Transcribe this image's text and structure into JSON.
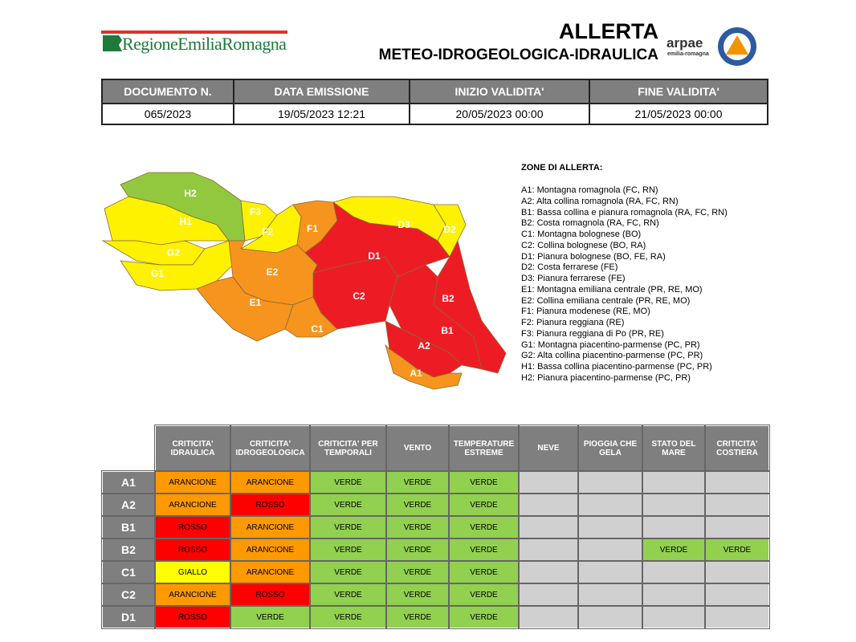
{
  "header": {
    "logo_text": "RegioneEmiliaRomagna",
    "title": "ALLERTA",
    "subtitle": "METEO-IDROGEOLOGICA-IDRAULICA",
    "arpae": "arpae",
    "arpae_sub": "emilia-romagna"
  },
  "doc_table": {
    "headers": [
      "DOCUMENTO N.",
      "DATA EMISSIONE",
      "INIZIO VALIDITA'",
      "FINE VALIDITA'"
    ],
    "values": [
      "065/2023",
      "19/05/2023 12:21",
      "20/05/2023 00:00",
      "21/05/2023 00:00"
    ]
  },
  "map": {
    "labels": [
      "H2",
      "H1",
      "G2",
      "G1",
      "F3",
      "F2",
      "F1",
      "E2",
      "E1",
      "C1",
      "C2",
      "D1",
      "D3",
      "D2",
      "B2",
      "B1",
      "A2",
      "A1"
    ]
  },
  "zones": {
    "title": "ZONE DI ALLERTA:",
    "items": [
      "A1: Montagna romagnola (FC, RN)",
      "A2: Alta collina romagnola (RA, FC, RN)",
      "B1: Bassa collina e pianura romagnola (RA, FC, RN)",
      "B2: Costa romagnola (RA, FC, RN)",
      "C1: Montagna bolognese (BO)",
      "C2: Collina bolognese (BO, RA)",
      "D1: Pianura bolognese (BO, FE, RA)",
      "D2: Costa ferrarese (FE)",
      "D3: Pianura ferrarese (FE)",
      "E1: Montagna emiliana centrale (PR, RE, MO)",
      "E2: Collina emiliana centrale (PR, RE, MO)",
      "F1: Pianura modenese (RE, MO)",
      "F2: Pianura reggiana (RE)",
      "F3: Pianura reggiana di Po (PR, RE)",
      "G1: Montagna piacentino-parmense (PC, PR)",
      "G2: Alta collina piacentino-parmense (PC, PR)",
      "H1: Bassa collina piacentino-parmense (PC, PR)",
      "H2: Pianura piacentino-parmense (PC, PR)"
    ]
  },
  "alert_table": {
    "headers": [
      "CRITICITA' IDRAULICA",
      "CRITICITA' IDROGEOLOGICA",
      "CRITICITA' PER TEMPORALI",
      "VENTO",
      "TEMPERATURE ESTREME",
      "NEVE",
      "PIOGGIA CHE GELA",
      "STATO DEL MARE",
      "CRITICITA' COSTIERA"
    ],
    "rows": [
      {
        "zone": "A1",
        "cells": [
          "ARANCIONE",
          "ARANCIONE",
          "VERDE",
          "VERDE",
          "VERDE",
          null,
          null,
          null,
          null
        ]
      },
      {
        "zone": "A2",
        "cells": [
          "ARANCIONE",
          "ROSSO",
          "VERDE",
          "VERDE",
          "VERDE",
          null,
          null,
          null,
          null
        ]
      },
      {
        "zone": "B1",
        "cells": [
          "ROSSO",
          "ARANCIONE",
          "VERDE",
          "VERDE",
          "VERDE",
          null,
          null,
          null,
          null
        ]
      },
      {
        "zone": "B2",
        "cells": [
          "ROSSO",
          "ARANCIONE",
          "VERDE",
          "VERDE",
          "VERDE",
          null,
          null,
          "VERDE",
          "VERDE"
        ]
      },
      {
        "zone": "C1",
        "cells": [
          "GIALLO",
          "ARANCIONE",
          "VERDE",
          "VERDE",
          "VERDE",
          null,
          null,
          null,
          null
        ]
      },
      {
        "zone": "C2",
        "cells": [
          "ARANCIONE",
          "ROSSO",
          "VERDE",
          "VERDE",
          "VERDE",
          null,
          null,
          null,
          null
        ]
      },
      {
        "zone": "D1",
        "cells": [
          "ROSSO",
          "VERDE",
          "VERDE",
          "VERDE",
          "VERDE",
          null,
          null,
          null,
          null
        ]
      }
    ]
  }
}
